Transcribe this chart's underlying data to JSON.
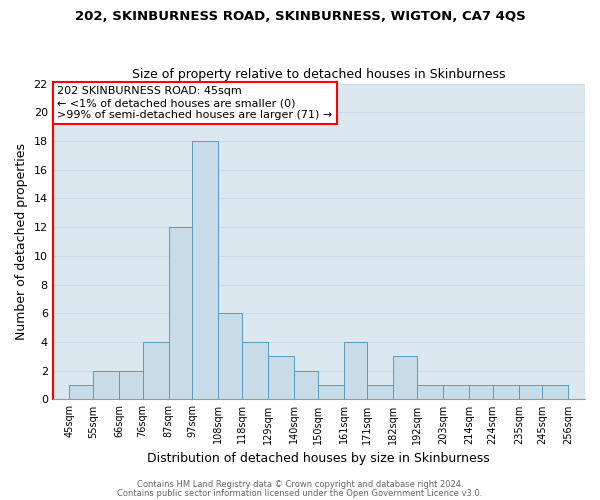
{
  "title_line1": "202, SKINBURNESS ROAD, SKINBURNESS, WIGTON, CA7 4QS",
  "title_line2": "Size of property relative to detached houses in Skinburness",
  "xlabel": "Distribution of detached houses by size in Skinburness",
  "ylabel": "Number of detached properties",
  "bar_left_edges": [
    45,
    55,
    66,
    76,
    87,
    97,
    108,
    118,
    129,
    140,
    150,
    161,
    171,
    182,
    192,
    203,
    214,
    224,
    235,
    245
  ],
  "bar_widths": [
    10,
    11,
    10,
    11,
    10,
    11,
    10,
    11,
    11,
    10,
    11,
    10,
    11,
    10,
    11,
    11,
    10,
    11,
    10,
    11
  ],
  "bar_heights": [
    1,
    2,
    2,
    4,
    12,
    18,
    6,
    4,
    3,
    2,
    1,
    4,
    1,
    3,
    1,
    1,
    1,
    1,
    1,
    1
  ],
  "bar_color": "#c8dce8",
  "bar_edge_color": "#5a9abf",
  "xtick_labels": [
    "45sqm",
    "55sqm",
    "66sqm",
    "76sqm",
    "87sqm",
    "97sqm",
    "108sqm",
    "118sqm",
    "129sqm",
    "140sqm",
    "150sqm",
    "161sqm",
    "171sqm",
    "182sqm",
    "192sqm",
    "203sqm",
    "214sqm",
    "224sqm",
    "235sqm",
    "245sqm",
    "256sqm"
  ],
  "xtick_positions": [
    45,
    55,
    66,
    76,
    87,
    97,
    108,
    118,
    129,
    140,
    150,
    161,
    171,
    182,
    192,
    203,
    214,
    224,
    235,
    245,
    256
  ],
  "ylim": [
    0,
    22
  ],
  "xlim": [
    38,
    263
  ],
  "yticks": [
    0,
    2,
    4,
    6,
    8,
    10,
    12,
    14,
    16,
    18,
    20,
    22
  ],
  "annotation_title": "202 SKINBURNESS ROAD: 45sqm",
  "annotation_line2": "← <1% of detached houses are smaller (0)",
  "annotation_line3": ">99% of semi-detached houses are larger (71) →",
  "grid_color": "#ccd9e8",
  "footer_line1": "Contains HM Land Registry data © Crown copyright and database right 2024.",
  "footer_line2": "Contains public sector information licensed under the Open Government Licence v3.0.",
  "background_color": "#dce8f0"
}
